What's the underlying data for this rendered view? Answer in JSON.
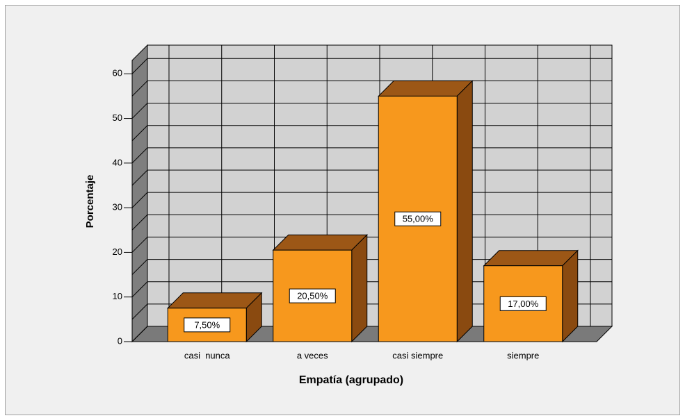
{
  "chart_data": {
    "type": "bar3d",
    "x_label": "Empatía (agrupado)",
    "y_label": "Porcentaje",
    "categories": [
      "casi  nunca",
      "a veces",
      "casi siempre",
      "siempre"
    ],
    "values": [
      7.5,
      20.5,
      55,
      17
    ],
    "value_labels": [
      "7,50%",
      "20,50%",
      "55,00%",
      "17,00%"
    ],
    "color": "#f7981d",
    "ylim": [
      0,
      63
    ],
    "yticks": [
      0,
      10,
      20,
      30,
      40,
      50,
      60
    ],
    "yminor": [
      5,
      15,
      25,
      35,
      45,
      55
    ],
    "grid": true
  }
}
